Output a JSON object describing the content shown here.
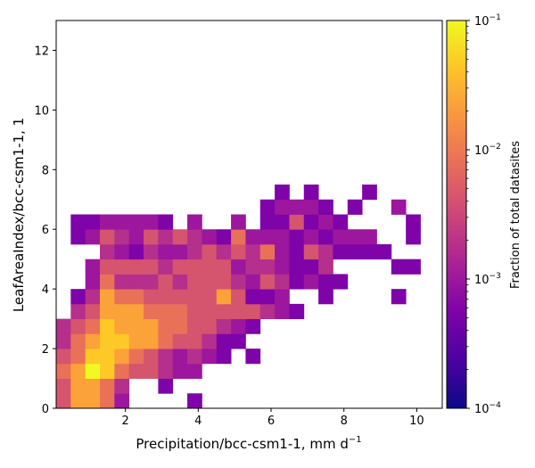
{
  "chart_data": {
    "type": "heatmap",
    "title": "",
    "xlabel": "Precipitation/bcc-csm1-1,  mm d",
    "xlabel_sup": "−1",
    "ylabel": "LeafAreaIndex/bcc-csm1-1,  1",
    "xlim": [
      0.1,
      10.7
    ],
    "ylim": [
      0,
      13
    ],
    "x_ticks": [
      2,
      4,
      6,
      8,
      10
    ],
    "y_ticks": [
      0,
      2,
      4,
      6,
      8,
      10,
      12
    ],
    "bin_width_x": 0.4,
    "bin_height_y": 0.5,
    "colormap": "plasma",
    "colorbar": {
      "label": "Fraction of total datasites",
      "scale": "log",
      "range": [
        0.0001,
        0.1
      ],
      "tick_values": [
        0.1,
        0.01,
        0.001,
        0.0001
      ],
      "tick_labels": [
        {
          "base": "10",
          "exp": "−1"
        },
        {
          "base": "10",
          "exp": "−2"
        },
        {
          "base": "10",
          "exp": "−3"
        },
        {
          "base": "10",
          "exp": "−4"
        }
      ]
    },
    "colors": {
      "v8": "#f0f921",
      "v7": "#fdc926",
      "v6": "#fba238",
      "v5": "#e97158",
      "v4": "#d5546e",
      "v3": "#b52f8c",
      "v2": "#9c179e",
      "v1": "#7e03a8",
      "v0": "#6a00a8"
    },
    "cells": [
      [
        0.1,
        0,
        4
      ],
      [
        0.5,
        0,
        6
      ],
      [
        0.9,
        0,
        6
      ],
      [
        1.3,
        0,
        5
      ],
      [
        1.7,
        0,
        2
      ],
      [
        3.7,
        0,
        1
      ],
      [
        0.1,
        0.5,
        4
      ],
      [
        0.5,
        0.5,
        6
      ],
      [
        0.9,
        0.5,
        6
      ],
      [
        1.3,
        0.5,
        5
      ],
      [
        1.7,
        0.5,
        3
      ],
      [
        2.9,
        0.5,
        1
      ],
      [
        0.1,
        1,
        5
      ],
      [
        0.5,
        1,
        6
      ],
      [
        0.9,
        1,
        8
      ],
      [
        1.3,
        1,
        7
      ],
      [
        1.7,
        1,
        5
      ],
      [
        2.1,
        1,
        4
      ],
      [
        2.5,
        1,
        4
      ],
      [
        2.9,
        1,
        3
      ],
      [
        3.3,
        1,
        2
      ],
      [
        3.7,
        1,
        2
      ],
      [
        0.1,
        1.5,
        4
      ],
      [
        0.5,
        1.5,
        5
      ],
      [
        0.9,
        1.5,
        7
      ],
      [
        1.3,
        1.5,
        7
      ],
      [
        1.7,
        1.5,
        6
      ],
      [
        2.1,
        1.5,
        5
      ],
      [
        2.5,
        1.5,
        4
      ],
      [
        2.9,
        1.5,
        3
      ],
      [
        3.3,
        1.5,
        2
      ],
      [
        3.7,
        1.5,
        3
      ],
      [
        4.1,
        1.5,
        2
      ],
      [
        4.5,
        1.5,
        1
      ],
      [
        5.3,
        1.5,
        1
      ],
      [
        0.1,
        2,
        3
      ],
      [
        0.5,
        2,
        5
      ],
      [
        0.9,
        2,
        6
      ],
      [
        1.3,
        2,
        7
      ],
      [
        1.7,
        2,
        7
      ],
      [
        2.1,
        2,
        6
      ],
      [
        2.5,
        2,
        6
      ],
      [
        2.9,
        2,
        5
      ],
      [
        3.3,
        2,
        4
      ],
      [
        3.7,
        2,
        4
      ],
      [
        4.1,
        2,
        3
      ],
      [
        4.5,
        2,
        1
      ],
      [
        4.9,
        2,
        1
      ],
      [
        0.1,
        2.5,
        3
      ],
      [
        0.5,
        2.5,
        4
      ],
      [
        0.9,
        2.5,
        5
      ],
      [
        1.3,
        2.5,
        7
      ],
      [
        1.7,
        2.5,
        6
      ],
      [
        2.1,
        2.5,
        6
      ],
      [
        2.5,
        2.5,
        6
      ],
      [
        2.9,
        2.5,
        5
      ],
      [
        3.3,
        2.5,
        5
      ],
      [
        3.7,
        2.5,
        4
      ],
      [
        4.1,
        2.5,
        4
      ],
      [
        4.5,
        2.5,
        3
      ],
      [
        4.9,
        2.5,
        2
      ],
      [
        5.3,
        2.5,
        1
      ],
      [
        0.5,
        3,
        3
      ],
      [
        0.9,
        3,
        4
      ],
      [
        1.3,
        3,
        6
      ],
      [
        1.7,
        3,
        6
      ],
      [
        2.1,
        3,
        6
      ],
      [
        2.5,
        3,
        5
      ],
      [
        2.9,
        3,
        5
      ],
      [
        3.3,
        3,
        5
      ],
      [
        3.7,
        3,
        4
      ],
      [
        4.1,
        3,
        4
      ],
      [
        4.5,
        3,
        4
      ],
      [
        4.9,
        3,
        4
      ],
      [
        5.3,
        3,
        4
      ],
      [
        5.7,
        3,
        3
      ],
      [
        6.1,
        3,
        2
      ],
      [
        6.5,
        3,
        1
      ],
      [
        0.5,
        3.5,
        1
      ],
      [
        0.9,
        3.5,
        3
      ],
      [
        1.3,
        3.5,
        6
      ],
      [
        1.7,
        3.5,
        5
      ],
      [
        2.1,
        3.5,
        5
      ],
      [
        2.5,
        3.5,
        4
      ],
      [
        2.9,
        3.5,
        4
      ],
      [
        3.3,
        3.5,
        4
      ],
      [
        3.7,
        3.5,
        4
      ],
      [
        4.1,
        3.5,
        4
      ],
      [
        4.5,
        3.5,
        6
      ],
      [
        4.9,
        3.5,
        4
      ],
      [
        5.3,
        3.5,
        1
      ],
      [
        5.7,
        3.5,
        1
      ],
      [
        6.1,
        3.5,
        2
      ],
      [
        7.3,
        3.5,
        1
      ],
      [
        9.3,
        3.5,
        1
      ],
      [
        0.9,
        4,
        2
      ],
      [
        1.3,
        4,
        5
      ],
      [
        1.7,
        4,
        3
      ],
      [
        2.1,
        4,
        3
      ],
      [
        2.5,
        4,
        3
      ],
      [
        2.9,
        4,
        4
      ],
      [
        3.3,
        4,
        3
      ],
      [
        3.7,
        4,
        4
      ],
      [
        4.1,
        4,
        4
      ],
      [
        4.5,
        4,
        4
      ],
      [
        4.9,
        4,
        3
      ],
      [
        5.3,
        4,
        2
      ],
      [
        5.7,
        4,
        4
      ],
      [
        6.1,
        4,
        3
      ],
      [
        6.5,
        4,
        1
      ],
      [
        6.9,
        4,
        2
      ],
      [
        7.3,
        4,
        1
      ],
      [
        7.7,
        4,
        1
      ],
      [
        0.9,
        4.5,
        2
      ],
      [
        1.3,
        4.5,
        4
      ],
      [
        1.7,
        4.5,
        4
      ],
      [
        2.1,
        4.5,
        4
      ],
      [
        2.5,
        4.5,
        4
      ],
      [
        2.9,
        4.5,
        3
      ],
      [
        3.3,
        4.5,
        4
      ],
      [
        3.7,
        4.5,
        4
      ],
      [
        4.1,
        4.5,
        4
      ],
      [
        4.5,
        4.5,
        4
      ],
      [
        4.9,
        4.5,
        2
      ],
      [
        5.3,
        4.5,
        3
      ],
      [
        5.7,
        4.5,
        3
      ],
      [
        6.1,
        4.5,
        2
      ],
      [
        6.5,
        4.5,
        1
      ],
      [
        6.9,
        4.5,
        1
      ],
      [
        7.3,
        4.5,
        3
      ],
      [
        9.3,
        4.5,
        1
      ],
      [
        9.7,
        4.5,
        1
      ],
      [
        1.3,
        5,
        3
      ],
      [
        1.7,
        5,
        2
      ],
      [
        2.1,
        5,
        1
      ],
      [
        2.5,
        5,
        3
      ],
      [
        2.9,
        5,
        2
      ],
      [
        3.3,
        5,
        2
      ],
      [
        3.7,
        5,
        3
      ],
      [
        4.1,
        5,
        4
      ],
      [
        4.5,
        5,
        3
      ],
      [
        4.9,
        5,
        4
      ],
      [
        5.3,
        5,
        3
      ],
      [
        5.7,
        5,
        5
      ],
      [
        6.1,
        5,
        2
      ],
      [
        6.5,
        5,
        1
      ],
      [
        6.9,
        5,
        4
      ],
      [
        7.3,
        5,
        3
      ],
      [
        7.7,
        5,
        1
      ],
      [
        8.1,
        5,
        1
      ],
      [
        8.5,
        5,
        1
      ],
      [
        8.9,
        5,
        1
      ],
      [
        0.5,
        5.5,
        1
      ],
      [
        0.9,
        5.5,
        2
      ],
      [
        1.3,
        5.5,
        4
      ],
      [
        1.7,
        5.5,
        3
      ],
      [
        2.1,
        5.5,
        2
      ],
      [
        2.5,
        5.5,
        4
      ],
      [
        2.9,
        5.5,
        3
      ],
      [
        3.3,
        5.5,
        4
      ],
      [
        3.7,
        5.5,
        3
      ],
      [
        4.1,
        5.5,
        2
      ],
      [
        4.5,
        5.5,
        1
      ],
      [
        4.9,
        5.5,
        5
      ],
      [
        5.3,
        5.5,
        2
      ],
      [
        5.7,
        5.5,
        2
      ],
      [
        6.1,
        5.5,
        2
      ],
      [
        6.5,
        5.5,
        1
      ],
      [
        6.9,
        5.5,
        2
      ],
      [
        7.3,
        5.5,
        1
      ],
      [
        7.7,
        5.5,
        2
      ],
      [
        8.1,
        5.5,
        2
      ],
      [
        8.5,
        5.5,
        2
      ],
      [
        9.7,
        5.5,
        1
      ],
      [
        0.5,
        6,
        1
      ],
      [
        0.9,
        6,
        1
      ],
      [
        1.3,
        6,
        2
      ],
      [
        1.7,
        6,
        2
      ],
      [
        2.1,
        6,
        2
      ],
      [
        2.5,
        6,
        2
      ],
      [
        2.9,
        6,
        1
      ],
      [
        3.7,
        6,
        2
      ],
      [
        4.9,
        6,
        2
      ],
      [
        5.7,
        6,
        1
      ],
      [
        6.1,
        6,
        1
      ],
      [
        6.5,
        6,
        4
      ],
      [
        6.9,
        6,
        1
      ],
      [
        7.3,
        6,
        2
      ],
      [
        7.7,
        6,
        1
      ],
      [
        9.7,
        6,
        1
      ],
      [
        5.7,
        6.5,
        1
      ],
      [
        6.1,
        6.5,
        2
      ],
      [
        6.5,
        6.5,
        2
      ],
      [
        6.9,
        6.5,
        2
      ],
      [
        7.3,
        6.5,
        1
      ],
      [
        8.1,
        6.5,
        1
      ],
      [
        9.3,
        6.5,
        2
      ],
      [
        6.1,
        7,
        1
      ],
      [
        6.9,
        7,
        1
      ],
      [
        8.5,
        7,
        1
      ]
    ]
  }
}
